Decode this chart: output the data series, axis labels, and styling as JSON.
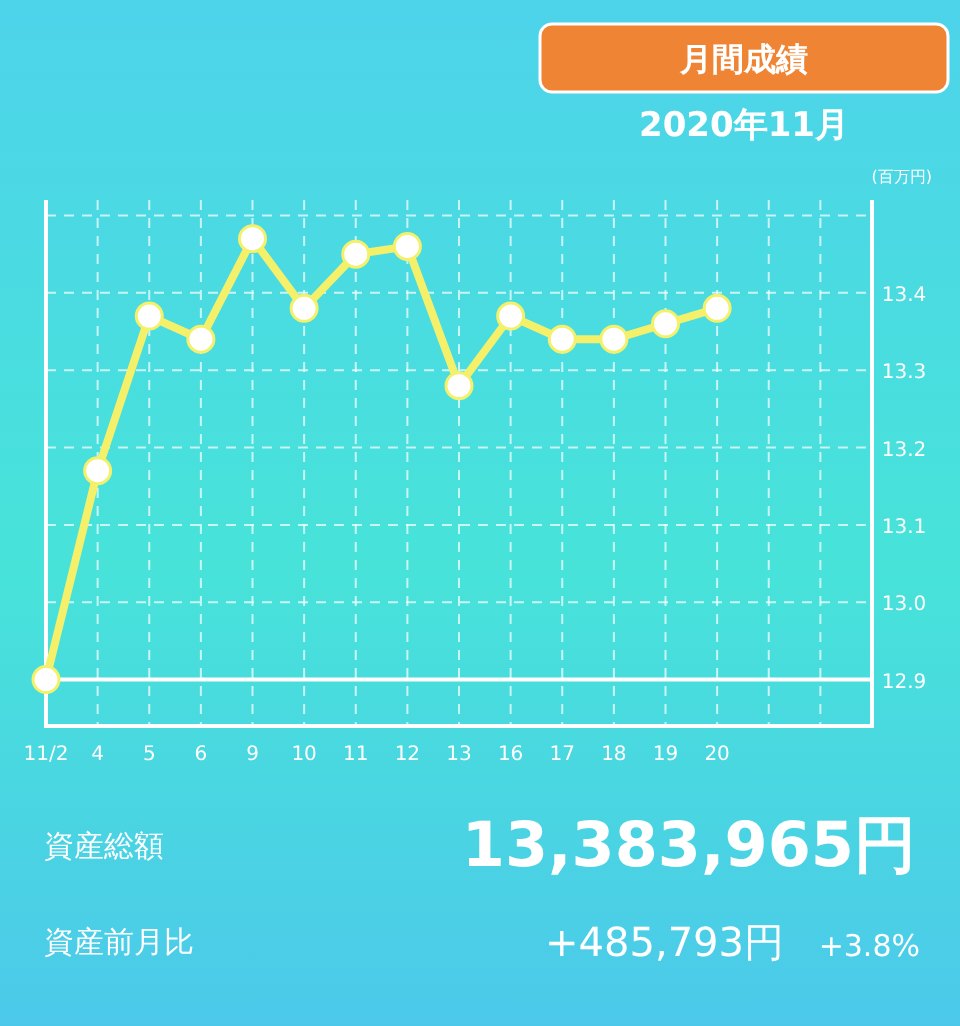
{
  "chart_data": {
    "type": "line",
    "title": "月間成績",
    "subtitle": "2020年11月",
    "ylabel": "(百万円)",
    "categories": [
      "11/2",
      "4",
      "5",
      "6",
      "9",
      "10",
      "11",
      "12",
      "13",
      "16",
      "17",
      "18",
      "19",
      "20",
      null,
      null
    ],
    "series": [
      {
        "color": "#f5f06a",
        "values": [
          12.9,
          13.17,
          13.37,
          13.34,
          13.47,
          13.38,
          13.45,
          13.46,
          13.28,
          13.37,
          13.34,
          13.34,
          13.36,
          13.38,
          null,
          null
        ]
      }
    ],
    "ylim": [
      12.84,
      13.52
    ],
    "yticks": [
      {
        "value": 12.9,
        "label": "12.9"
      },
      {
        "value": 13.0,
        "label": "13.0"
      },
      {
        "value": 13.1,
        "label": "13.1"
      },
      {
        "value": 13.2,
        "label": "13.2"
      },
      {
        "value": 13.3,
        "label": "13.3"
      },
      {
        "value": 13.4,
        "label": "13.4"
      },
      {
        "value": 13.5,
        "label": null
      }
    ],
    "ref_lines": [
      {
        "axis": "y",
        "value": 12.9,
        "color": "#ffffff"
      }
    ],
    "grid": true,
    "marker": "circle",
    "line_style": "solid",
    "annotations": [
      "資産総額",
      "13,383,965円",
      "資産前月比",
      "+485,793円",
      "+3.8%"
    ]
  }
}
